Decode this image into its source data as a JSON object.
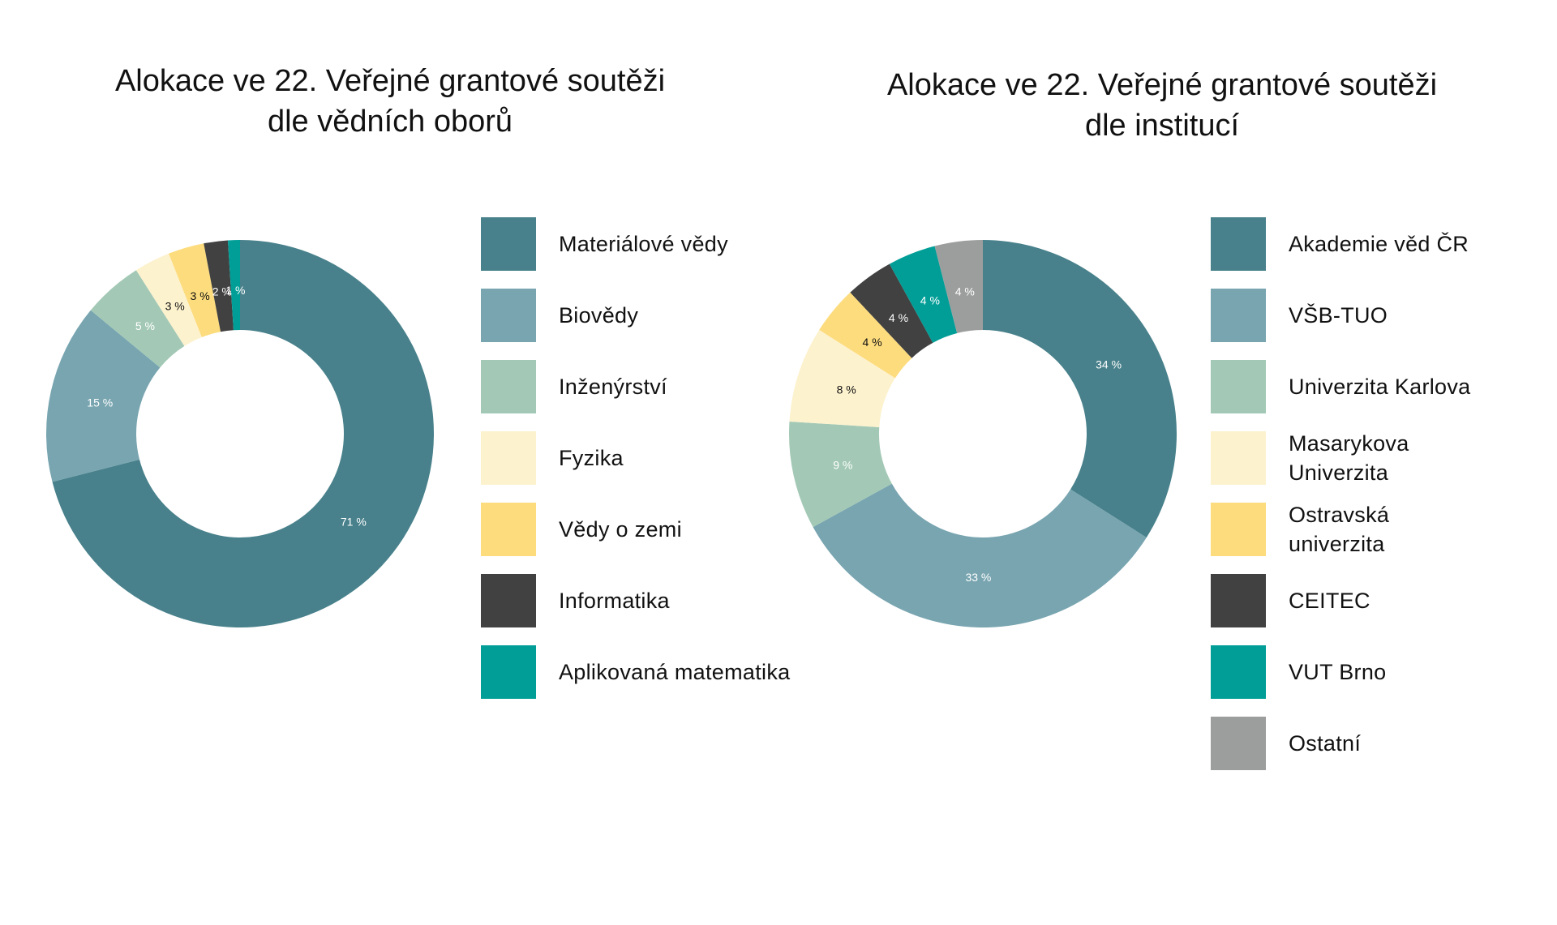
{
  "chart_data": [
    {
      "type": "pie",
      "title_lines": [
        "Alokace ve 22. Veřejné grantové soutěži",
        "dle vědních oborů"
      ],
      "legend_position": "right",
      "slices": [
        {
          "label": "Materiálové vědy",
          "value": 71,
          "value_label": "71 %",
          "color": "#48818b",
          "text_color": "#ffffff"
        },
        {
          "label": "Biovědy",
          "value": 15,
          "value_label": "15 %",
          "color": "#78a5b0",
          "text_color": "#ffffff"
        },
        {
          "label": "Inženýrství",
          "value": 5,
          "value_label": "5 %",
          "color": "#a3c9b6",
          "text_color": "#ffffff"
        },
        {
          "label": "Fyzika",
          "value": 3,
          "value_label": "3 %",
          "color": "#fdf2ce",
          "text_color": "#111111"
        },
        {
          "label": "Vědy o zemi",
          "value": 3,
          "value_label": "3 %",
          "color": "#fddc7d",
          "text_color": "#111111"
        },
        {
          "label": "Informatika",
          "value": 2,
          "value_label": "2 %",
          "color": "#414141",
          "text_color": "#ffffff"
        },
        {
          "label": "Aplikovaná matematika",
          "value": 1,
          "value_label": "1 %",
          "color": "#019e97",
          "text_color": "#ffffff"
        }
      ]
    },
    {
      "type": "pie",
      "title_lines": [
        "Alokace ve 22. Veřejné grantové soutěži",
        "dle institucí"
      ],
      "legend_position": "right",
      "slices": [
        {
          "label": "Akademie věd ČR",
          "value": 34,
          "value_label": "34 %",
          "color": "#48818b",
          "text_color": "#ffffff"
        },
        {
          "label": "VŠB-TUO",
          "value": 33,
          "value_label": "33 %",
          "color": "#78a5b0",
          "text_color": "#ffffff"
        },
        {
          "label": "Univerzita Karlova",
          "value": 9,
          "value_label": "9 %",
          "color": "#a3c9b6",
          "text_color": "#ffffff"
        },
        {
          "label": "Masarykova\nUniverzita",
          "value": 8,
          "value_label": "8 %",
          "color": "#fdf2ce",
          "text_color": "#111111"
        },
        {
          "label": "Ostravská\nuniverzita",
          "value": 4,
          "value_label": "4 %",
          "color": "#fddc7d",
          "text_color": "#111111"
        },
        {
          "label": "CEITEC",
          "value": 4,
          "value_label": "4 %",
          "color": "#414141",
          "text_color": "#ffffff"
        },
        {
          "label": "VUT Brno",
          "value": 4,
          "value_label": "4 %",
          "color": "#019e97",
          "text_color": "#ffffff"
        },
        {
          "label": "Ostatní",
          "value": 4,
          "value_label": "4 %",
          "color": "#9c9d9d",
          "text_color": "#ffffff"
        }
      ]
    }
  ]
}
